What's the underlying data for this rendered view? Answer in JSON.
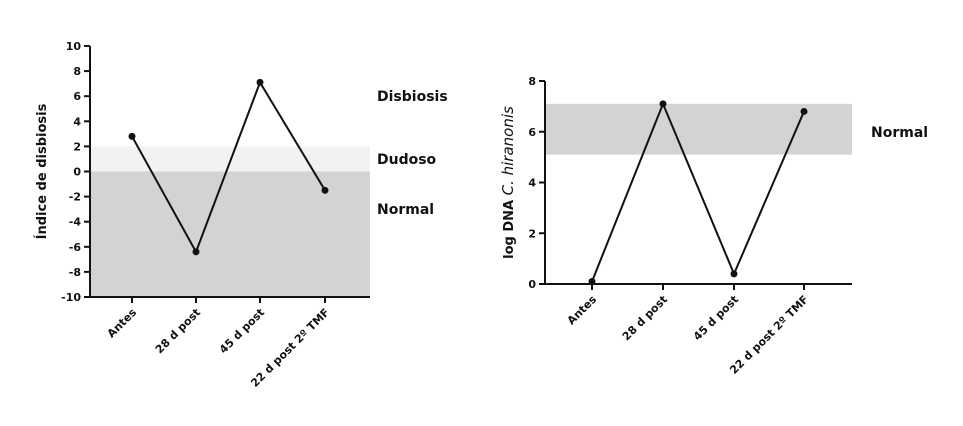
{
  "chart_data": [
    {
      "type": "line",
      "categories": [
        "Antes",
        "28 d post",
        "45 d post",
        "22 d post 2º TMF"
      ],
      "values": [
        2.8,
        -6.4,
        7.1,
        -1.5
      ],
      "ylabel": "Índice de disbiosis",
      "xlabel": "",
      "ylim": [
        -10,
        10
      ],
      "yticks": [
        -10,
        -8,
        -6,
        -4,
        -2,
        0,
        2,
        4,
        6,
        8,
        10
      ],
      "bands": [
        {
          "from": 0,
          "to": 2,
          "color": "#f2f2f2"
        },
        {
          "from": -10,
          "to": 0,
          "color": "#d3d3d5"
        }
      ],
      "zone_labels": [
        {
          "text": "Disbiosis",
          "at": 6
        },
        {
          "text": "Dudoso",
          "at": 1
        },
        {
          "text": "Normal",
          "at": -3
        }
      ],
      "grid": false
    },
    {
      "type": "line",
      "categories": [
        "Antes",
        "28 d post",
        "45 d post",
        "22 d post 2º TMF"
      ],
      "values": [
        0.1,
        7.1,
        0.4,
        6.8
      ],
      "ylabel_main": "log DNA",
      "ylabel_italic": "C. hiranonis",
      "xlabel": "",
      "ylim": [
        0,
        8
      ],
      "yticks": [
        0,
        2,
        4,
        6,
        8
      ],
      "bands": [
        {
          "from": 5.1,
          "to": 7.1,
          "color": "#d3d3d5"
        }
      ],
      "zone_labels": [
        {
          "text": "Normal",
          "at": 6
        }
      ],
      "grid": false
    }
  ]
}
